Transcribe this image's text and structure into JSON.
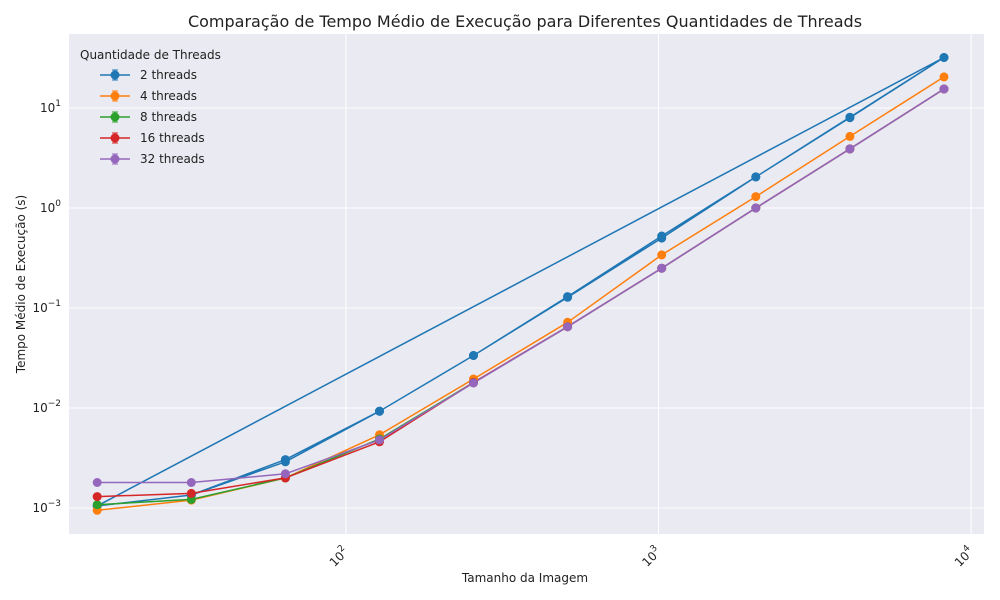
{
  "chart_data": {
    "type": "line",
    "title": "Comparação de Tempo Médio de Execução para Diferentes Quantidades de Threads",
    "xlabel": "Tamanho da Imagem",
    "ylabel": "Tempo Médio de Execução (s)",
    "xscale": "log",
    "yscale": "log",
    "xlim": [
      13,
      11000
    ],
    "ylim": [
      0.00055,
      55
    ],
    "grid": true,
    "legend": {
      "title": "Quantidade de Threads",
      "placement": "top-left"
    },
    "x_ticks": [
      {
        "value": 100,
        "base": "10",
        "exp": "2"
      },
      {
        "value": 1000,
        "base": "10",
        "exp": "3"
      },
      {
        "value": 10000,
        "base": "10",
        "exp": "4"
      }
    ],
    "y_ticks": [
      {
        "value": 0.001,
        "base": "10",
        "exp": "−3"
      },
      {
        "value": 0.01,
        "base": "10",
        "exp": "−2"
      },
      {
        "value": 0.1,
        "base": "10",
        "exp": "−1"
      },
      {
        "value": 1,
        "base": "10",
        "exp": "0"
      },
      {
        "value": 10,
        "base": "10",
        "exp": "1"
      }
    ],
    "series": [
      {
        "name": "2 threads",
        "color": "#1f77b4",
        "x": [
          16,
          32,
          64,
          128,
          256,
          512,
          1024,
          2048,
          4096,
          8192,
          16,
          32,
          64,
          128,
          256,
          512,
          1024,
          2048,
          4096,
          8192
        ],
        "y": [
          0.00105,
          0.00135,
          0.00305,
          0.0093,
          0.0335,
          0.13,
          0.525,
          2.05,
          8.1,
          32,
          0.00105,
          0.00135,
          0.0029,
          0.0093,
          0.0335,
          0.128,
          0.5,
          2.05,
          8.0,
          32
        ]
      },
      {
        "name": "4 threads",
        "color": "#ff7f0e",
        "x": [
          16,
          32,
          64,
          128,
          256,
          512,
          1024,
          2048,
          4096,
          8192
        ],
        "y": [
          0.00095,
          0.0012,
          0.002,
          0.0054,
          0.0195,
          0.072,
          0.34,
          1.3,
          5.2,
          20.5
        ]
      },
      {
        "name": "8 threads",
        "color": "#2ca02c",
        "x": [
          16,
          32,
          64,
          128,
          256,
          512,
          1024,
          2048,
          4096,
          8192
        ],
        "y": [
          0.00108,
          0.00122,
          0.002,
          0.0049,
          0.018,
          0.065,
          0.25,
          1.0,
          3.9,
          15.5
        ]
      },
      {
        "name": "16 threads",
        "color": "#d62728",
        "x": [
          16,
          32,
          64,
          128,
          256,
          512,
          1024,
          2048,
          4096,
          8192
        ],
        "y": [
          0.0013,
          0.0014,
          0.002,
          0.0046,
          0.018,
          0.065,
          0.25,
          1.0,
          3.9,
          15.5
        ]
      },
      {
        "name": "32 threads",
        "color": "#9467bd",
        "x": [
          16,
          32,
          64,
          128,
          256,
          512,
          1024,
          2048,
          4096,
          8192
        ],
        "y": [
          0.0018,
          0.0018,
          0.0022,
          0.0048,
          0.0178,
          0.065,
          0.25,
          1.0,
          3.9,
          15.5
        ]
      }
    ]
  }
}
